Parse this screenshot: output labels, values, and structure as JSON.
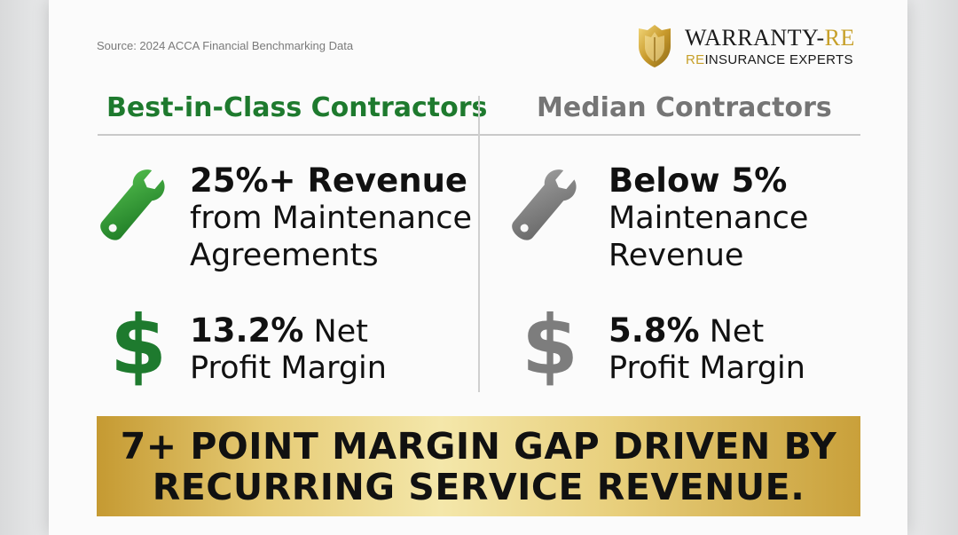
{
  "source": "Source: 2024 ACCA Financial Benchmarking Data",
  "logo": {
    "main_prefix": "WARRANTY-",
    "main_suffix": "RE",
    "sub_prefix": "RE",
    "sub_suffix": "INSURANCE EXPERTS",
    "icon": "shield-crest-icon"
  },
  "columns": {
    "left": {
      "title": "Best-in-Class Contractors",
      "accent": "#1e7a2e",
      "maintenance": {
        "icon": "wrench-icon",
        "line1": "25%+ Revenue",
        "line2": "from Maintenance",
        "line3": "Agreements"
      },
      "profit": {
        "icon": "dollar-icon",
        "value": "13.2%",
        "value_suffix": " Net",
        "line2": "Profit Margin"
      }
    },
    "right": {
      "title": "Median Contractors",
      "accent": "#757575",
      "maintenance": {
        "icon": "wrench-icon",
        "line1": "Below 5%",
        "line2": "Maintenance",
        "line3": "Revenue"
      },
      "profit": {
        "icon": "dollar-icon",
        "value": "5.8%",
        "value_suffix": " Net",
        "line2": "Profit Margin"
      }
    }
  },
  "banner": {
    "line1": "7+ POINT MARGIN GAP DRIVEN BY",
    "line2": "RECURRING SERVICE REVENUE."
  }
}
